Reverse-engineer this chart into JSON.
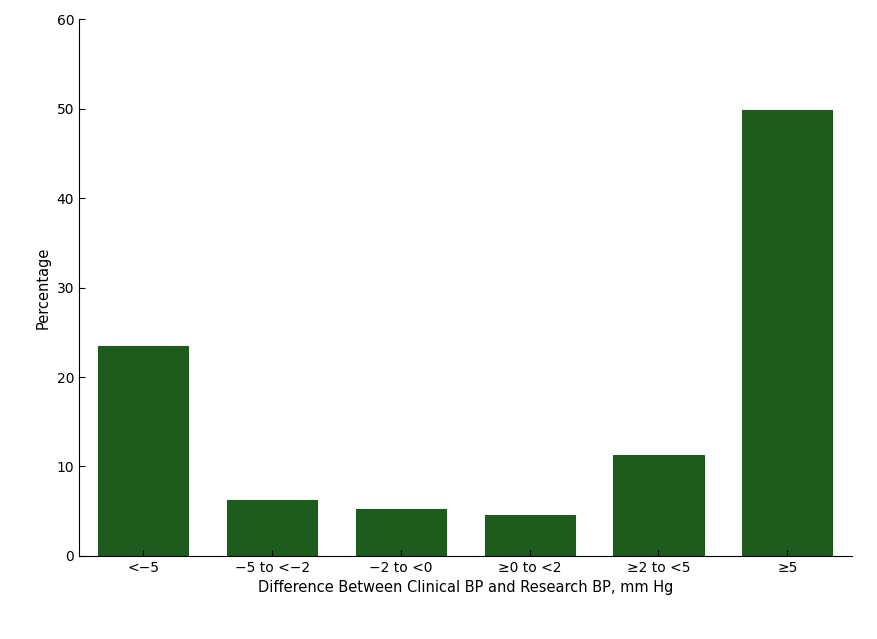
{
  "categories": [
    "<−5",
    "−5 to <−2",
    "−2 to <0",
    "≥0 to <2",
    "≥2 to <5",
    "≥5"
  ],
  "values": [
    23.5,
    6.2,
    5.3,
    4.6,
    11.3,
    49.8
  ],
  "bar_color": "#1e5c1e",
  "bar_edgecolor": "#1e5c1e",
  "ylabel": "Percentage",
  "xlabel": "Difference Between Clinical BP and Research BP, mm Hg",
  "ylim": [
    0,
    60
  ],
  "yticks": [
    0,
    10,
    20,
    30,
    40,
    50,
    60
  ],
  "background_color": "#ffffff",
  "bar_width": 0.7,
  "xlabel_fontsize": 10.5,
  "ylabel_fontsize": 10.5,
  "tick_fontsize": 10
}
